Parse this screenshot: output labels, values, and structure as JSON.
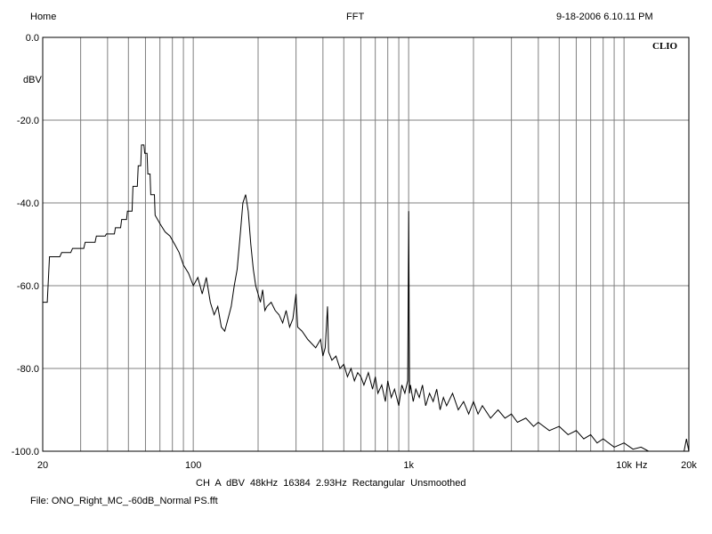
{
  "header": {
    "left": "Home",
    "center": "FFT",
    "right": "9-18-2006 6.10.11 PM"
  },
  "brand": "CLIO",
  "footer": {
    "settings": "CH A   dBV   48kHz   16384   2.93Hz   Rectangular   Unsmoothed",
    "file": "File: ONO_Right_MC_-60dB_Normal PS.fft"
  },
  "colors": {
    "background": "#ffffff",
    "grid": "#808080",
    "trace": "#000000"
  },
  "chart_data": {
    "type": "line",
    "xscale": "log",
    "xlim": [
      20,
      20000
    ],
    "ylim": [
      -100,
      0
    ],
    "ylabel": "dBV",
    "grid": true,
    "x_tick_labels": [
      {
        "value": 20,
        "label": "20"
      },
      {
        "value": 100,
        "label": "100"
      },
      {
        "value": 1000,
        "label": "1k"
      },
      {
        "value": 10000,
        "label": "10k"
      },
      {
        "value": 20000,
        "label": "20k"
      }
    ],
    "x_unit_label": "Hz",
    "y_tick_labels": [
      {
        "value": 0,
        "label": "0.0"
      },
      {
        "value": -20,
        "label": "-20.0"
      },
      {
        "value": -40,
        "label": "-40.0"
      },
      {
        "value": -60,
        "label": "-60.0"
      },
      {
        "value": -80,
        "label": "-80.0"
      },
      {
        "value": -100,
        "label": "-100.0"
      }
    ],
    "series": [
      {
        "values": [
          [
            20,
            -64
          ],
          [
            21,
            -64
          ],
          [
            21.5,
            -53
          ],
          [
            24,
            -53
          ],
          [
            24.5,
            -52
          ],
          [
            27,
            -52
          ],
          [
            27.5,
            -51
          ],
          [
            31,
            -51
          ],
          [
            31.5,
            -49.5
          ],
          [
            35,
            -49.5
          ],
          [
            35.5,
            -48
          ],
          [
            39,
            -48
          ],
          [
            39.5,
            -47.5
          ],
          [
            43,
            -47.5
          ],
          [
            43.5,
            -46
          ],
          [
            46,
            -46
          ],
          [
            46.5,
            -44
          ],
          [
            49,
            -44
          ],
          [
            49.5,
            -42
          ],
          [
            52,
            -42
          ],
          [
            52.5,
            -36
          ],
          [
            55,
            -36
          ],
          [
            55.5,
            -31
          ],
          [
            57,
            -31
          ],
          [
            57.5,
            -26
          ],
          [
            59,
            -26
          ],
          [
            59.5,
            -28
          ],
          [
            61,
            -28
          ],
          [
            61.5,
            -33
          ],
          [
            63,
            -33
          ],
          [
            63.5,
            -38
          ],
          [
            66,
            -38
          ],
          [
            66.5,
            -43
          ],
          [
            70,
            -45
          ],
          [
            74,
            -47
          ],
          [
            78,
            -48
          ],
          [
            82,
            -50
          ],
          [
            86,
            -52
          ],
          [
            90,
            -55
          ],
          [
            95,
            -57
          ],
          [
            100,
            -60
          ],
          [
            105,
            -58
          ],
          [
            110,
            -62
          ],
          [
            115,
            -58
          ],
          [
            120,
            -64
          ],
          [
            125,
            -67
          ],
          [
            130,
            -65
          ],
          [
            135,
            -70
          ],
          [
            140,
            -71
          ],
          [
            145,
            -68
          ],
          [
            150,
            -65
          ],
          [
            155,
            -60
          ],
          [
            160,
            -56
          ],
          [
            165,
            -48
          ],
          [
            170,
            -40
          ],
          [
            175,
            -38
          ],
          [
            180,
            -42
          ],
          [
            185,
            -50
          ],
          [
            190,
            -56
          ],
          [
            195,
            -60
          ],
          [
            200,
            -62
          ],
          [
            205,
            -64
          ],
          [
            210,
            -61
          ],
          [
            215,
            -66
          ],
          [
            220,
            -65
          ],
          [
            230,
            -64
          ],
          [
            240,
            -66
          ],
          [
            250,
            -67
          ],
          [
            260,
            -69
          ],
          [
            270,
            -66
          ],
          [
            280,
            -70
          ],
          [
            290,
            -68
          ],
          [
            300,
            -62
          ],
          [
            305,
            -70
          ],
          [
            320,
            -71
          ],
          [
            340,
            -73
          ],
          [
            355,
            -74
          ],
          [
            370,
            -75
          ],
          [
            390,
            -73
          ],
          [
            400,
            -77
          ],
          [
            410,
            -75
          ],
          [
            420,
            -65
          ],
          [
            425,
            -76
          ],
          [
            440,
            -78
          ],
          [
            460,
            -77
          ],
          [
            480,
            -80
          ],
          [
            500,
            -79
          ],
          [
            520,
            -82
          ],
          [
            540,
            -80
          ],
          [
            560,
            -83
          ],
          [
            580,
            -81
          ],
          [
            600,
            -82
          ],
          [
            620,
            -84
          ],
          [
            650,
            -81
          ],
          [
            680,
            -85
          ],
          [
            700,
            -82
          ],
          [
            720,
            -86
          ],
          [
            750,
            -84
          ],
          [
            780,
            -88
          ],
          [
            800,
            -83
          ],
          [
            830,
            -87
          ],
          [
            860,
            -85
          ],
          [
            900,
            -89
          ],
          [
            930,
            -84
          ],
          [
            960,
            -86
          ],
          [
            990,
            -83
          ],
          [
            1000,
            -42
          ],
          [
            1010,
            -86
          ],
          [
            1020,
            -84
          ],
          [
            1050,
            -88
          ],
          [
            1080,
            -85
          ],
          [
            1120,
            -87
          ],
          [
            1160,
            -84
          ],
          [
            1200,
            -89
          ],
          [
            1250,
            -86
          ],
          [
            1300,
            -88
          ],
          [
            1350,
            -85
          ],
          [
            1400,
            -90
          ],
          [
            1450,
            -87
          ],
          [
            1500,
            -89
          ],
          [
            1600,
            -86
          ],
          [
            1700,
            -90
          ],
          [
            1800,
            -88
          ],
          [
            1900,
            -91
          ],
          [
            2000,
            -88
          ],
          [
            2100,
            -91
          ],
          [
            2200,
            -89
          ],
          [
            2400,
            -92
          ],
          [
            2600,
            -90
          ],
          [
            2800,
            -92
          ],
          [
            3000,
            -91
          ],
          [
            3200,
            -93
          ],
          [
            3500,
            -92
          ],
          [
            3800,
            -94
          ],
          [
            4000,
            -93
          ],
          [
            4500,
            -95
          ],
          [
            5000,
            -94
          ],
          [
            5500,
            -96
          ],
          [
            6000,
            -95
          ],
          [
            6500,
            -97
          ],
          [
            7000,
            -96
          ],
          [
            7500,
            -98
          ],
          [
            8000,
            -97
          ],
          [
            9000,
            -99
          ],
          [
            10000,
            -98
          ],
          [
            11000,
            -99.5
          ],
          [
            12000,
            -99
          ],
          [
            13000,
            -100
          ],
          [
            15000,
            -100
          ],
          [
            17000,
            -100
          ],
          [
            19000,
            -100
          ],
          [
            19500,
            -97
          ],
          [
            20000,
            -100
          ]
        ]
      }
    ]
  }
}
